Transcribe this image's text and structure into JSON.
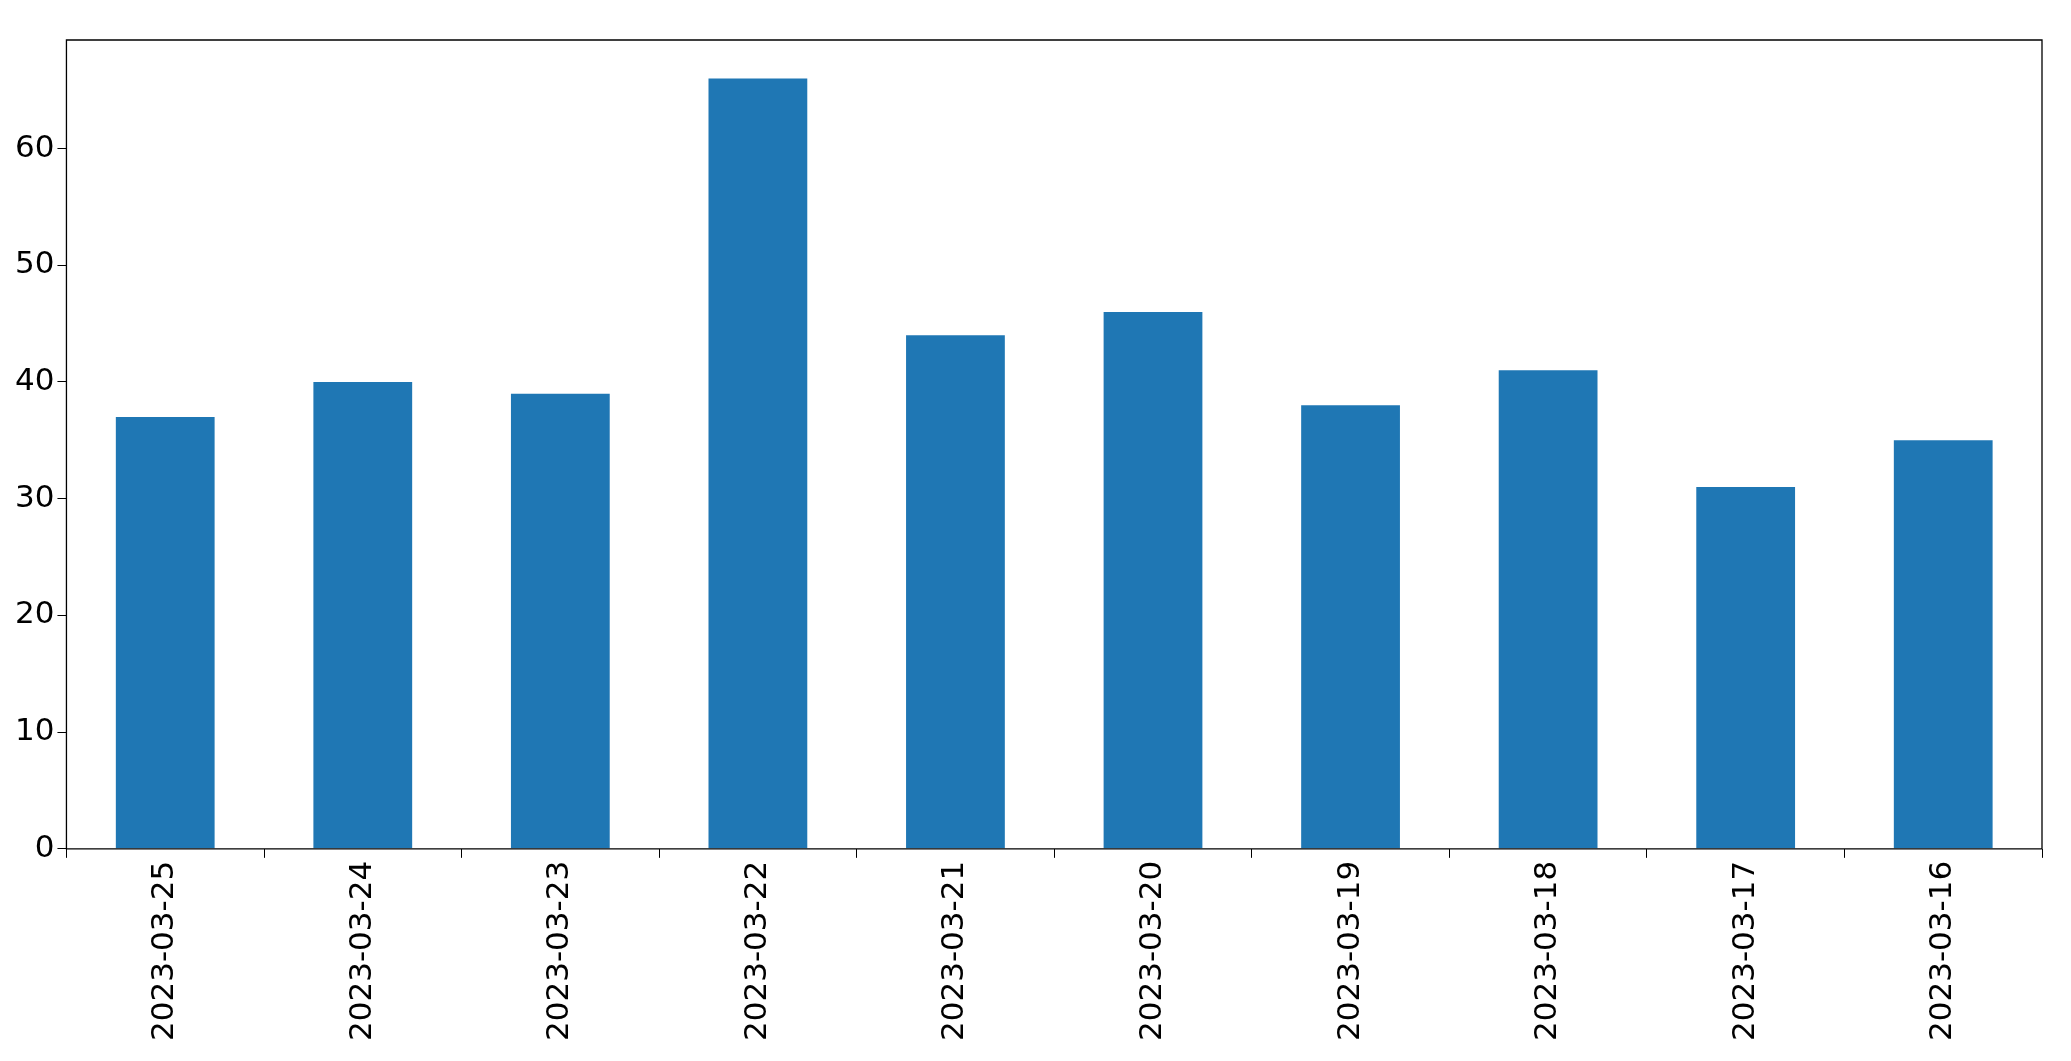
{
  "chart_data": {
    "type": "bar",
    "categories": [
      "2023-03-25",
      "2023-03-24",
      "2023-03-23",
      "2023-03-22",
      "2023-03-21",
      "2023-03-20",
      "2023-03-19",
      "2023-03-18",
      "2023-03-17",
      "2023-03-16"
    ],
    "values": [
      37,
      40,
      39,
      66,
      44,
      46,
      38,
      41,
      31,
      35
    ],
    "color": "#1f77b4",
    "ylim": [
      0,
      69.3
    ],
    "yticks": [
      0,
      10,
      20,
      30,
      40,
      50,
      60
    ]
  }
}
